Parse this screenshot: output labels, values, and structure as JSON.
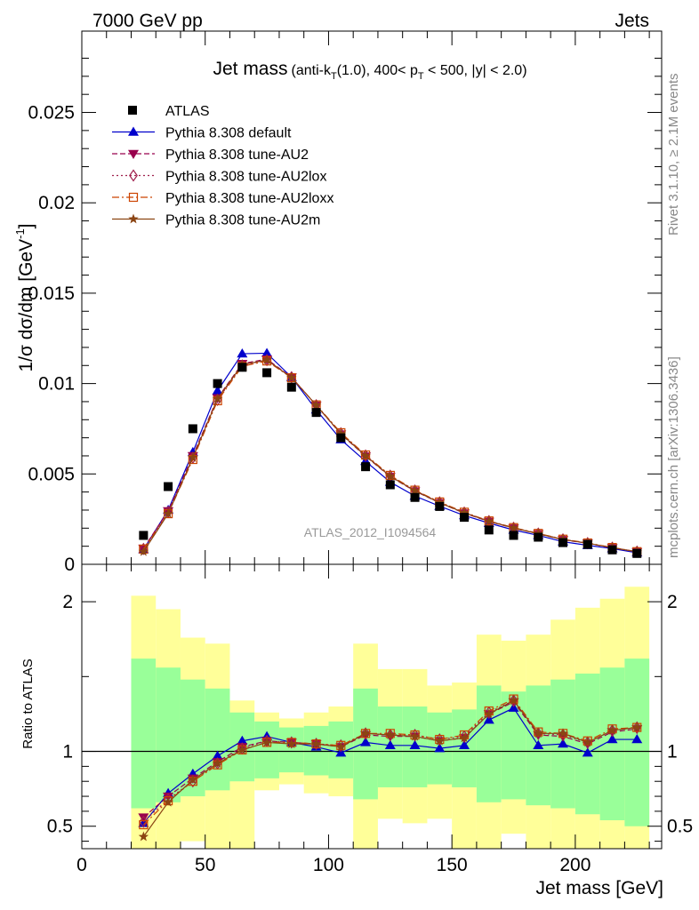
{
  "header": {
    "left": "7000 GeV pp",
    "right": "Jets"
  },
  "title": {
    "main": "Jet mass",
    "detail_1": "(anti-k",
    "detail_sub_1": "T",
    "detail_2": "(1.0), 400< p",
    "detail_sub_2": "T",
    "detail_3": " < 500, |y| < 2.0)"
  },
  "side_labels": {
    "rivet": "Rivet 3.1.10, ≥ 2.1M events",
    "mcplots": "mcplots.cern.ch [arXiv:1306.3436]"
  },
  "watermark": "ATLAS_2012_I1094564",
  "chart_data": [
    {
      "type": "scatter",
      "panel": "main",
      "ylabel_main": "1/σ dσ/dm [GeV",
      "ylabel_sup": "-1",
      "ylabel_close": "]",
      "xlim": [
        0,
        235
      ],
      "ylim": [
        0,
        0.0295
      ],
      "yticks": [
        0,
        0.005,
        0.01,
        0.015,
        0.02,
        0.025
      ],
      "ytick_labels": [
        "0",
        "0.005",
        "0.01",
        "0.015",
        "0.02",
        "0.025"
      ],
      "x": [
        25,
        35,
        45,
        55,
        65,
        75,
        85,
        95,
        105,
        115,
        125,
        135,
        145,
        155,
        165,
        175,
        185,
        195,
        205,
        215,
        225
      ],
      "data": {
        "name": "ATLAS",
        "values": [
          0.0016,
          0.0043,
          0.0075,
          0.01,
          0.0109,
          0.0106,
          0.0098,
          0.0084,
          0.007,
          0.0054,
          0.0044,
          0.0037,
          0.0032,
          0.0026,
          0.0019,
          0.0016,
          0.0015,
          0.0012,
          0.0011,
          0.0008,
          0.0006
        ]
      },
      "series": [
        {
          "name": "Pythia 8.308 default",
          "color": "#0000cc",
          "dash": "",
          "marker": "triangle-up",
          "values": [
            0.00082,
            0.003,
            0.0062,
            0.0096,
            0.01165,
            0.01168,
            0.01035,
            0.00855,
            0.0069,
            0.0057,
            0.00455,
            0.00378,
            0.00322,
            0.0027,
            0.00228,
            0.0019,
            0.0016,
            0.00125,
            0.00105,
            0.00087,
            0.00064
          ]
        },
        {
          "name": "Pythia 8.308 tune-AU2",
          "color": "#99004d",
          "dash": "6,3",
          "marker": "triangle-down",
          "values": [
            0.00088,
            0.00295,
            0.006,
            0.0092,
            0.0111,
            0.01135,
            0.01035,
            0.0088,
            0.0072,
            0.00598,
            0.00485,
            0.00405,
            0.0034,
            0.00283,
            0.00237,
            0.002,
            0.00168,
            0.00136,
            0.00116,
            0.00091,
            0.00069
          ]
        },
        {
          "name": "Pythia 8.308 tune-AU2lox",
          "color": "#a0204d",
          "dash": "2,3",
          "marker": "diamond",
          "values": [
            0.00085,
            0.0029,
            0.0059,
            0.0091,
            0.011,
            0.0113,
            0.01035,
            0.0088,
            0.00725,
            0.00602,
            0.0049,
            0.00408,
            0.00343,
            0.00286,
            0.00239,
            0.00202,
            0.0017,
            0.00138,
            0.00117,
            0.00092,
            0.0007
          ]
        },
        {
          "name": "Pythia 8.308 tune-AU2loxx",
          "color": "#cc4400",
          "dash": "8,3,2,3",
          "marker": "square",
          "values": [
            0.00084,
            0.0028,
            0.0058,
            0.00905,
            0.01095,
            0.01125,
            0.01032,
            0.00882,
            0.00728,
            0.00605,
            0.00492,
            0.0041,
            0.00345,
            0.00288,
            0.0024,
            0.00203,
            0.00171,
            0.00139,
            0.00118,
            0.00093,
            0.0007
          ]
        },
        {
          "name": "Pythia 8.308 tune-AU2m",
          "color": "#8b4513",
          "dash": "",
          "marker": "star",
          "values": [
            0.0007,
            0.0028,
            0.0059,
            0.00915,
            0.01105,
            0.0113,
            0.01033,
            0.0088,
            0.00722,
            0.006,
            0.00487,
            0.00407,
            0.00341,
            0.00285,
            0.00238,
            0.00201,
            0.00169,
            0.00137,
            0.00117,
            0.00092,
            0.00069
          ]
        }
      ],
      "legend_placement": "top-left"
    },
    {
      "type": "line",
      "panel": "ratio",
      "ylabel": "Ratio to ATLAS",
      "xlabel": "Jet mass [GeV]",
      "xlim": [
        0,
        235
      ],
      "ylim": [
        0.35,
        2.25
      ],
      "xticks": [
        0,
        50,
        100,
        150,
        200
      ],
      "xtick_labels": [
        "0",
        "50",
        "100",
        "150",
        "200"
      ],
      "yticks": [
        0.5,
        1,
        2
      ],
      "ytick_labels": [
        "0.5",
        "1",
        "2"
      ],
      "bin_edges": [
        20,
        30,
        40,
        50,
        60,
        70,
        80,
        90,
        100,
        110,
        120,
        130,
        140,
        150,
        160,
        170,
        180,
        190,
        200,
        210,
        220,
        230
      ],
      "band_1sigma_low": [
        0.62,
        0.66,
        0.7,
        0.74,
        0.8,
        0.82,
        0.86,
        0.84,
        0.82,
        0.68,
        0.76,
        0.76,
        0.78,
        0.76,
        0.66,
        0.68,
        0.64,
        0.62,
        0.58,
        0.54,
        0.5
      ],
      "band_1sigma_high": [
        1.62,
        1.56,
        1.48,
        1.42,
        1.26,
        1.2,
        1.16,
        1.17,
        1.2,
        1.42,
        1.3,
        1.3,
        1.26,
        1.28,
        1.44,
        1.4,
        1.44,
        1.48,
        1.52,
        1.56,
        1.62
      ],
      "band_2sigma_low": [
        0.35,
        0.35,
        0.4,
        0.35,
        0.35,
        0.74,
        0.78,
        0.72,
        0.7,
        0.35,
        0.55,
        0.52,
        0.55,
        0.35,
        0.35,
        0.45,
        0.35,
        0.35,
        0.35,
        0.35,
        0.35
      ],
      "band_2sigma_high": [
        2.04,
        1.95,
        1.76,
        1.72,
        1.34,
        1.26,
        1.22,
        1.26,
        1.3,
        1.72,
        1.55,
        1.55,
        1.44,
        1.46,
        1.78,
        1.74,
        1.78,
        1.88,
        1.96,
        2.02,
        2.1
      ],
      "series": [
        {
          "name": "Pythia 8.308 default",
          "values": [
            0.52,
            0.72,
            0.85,
            0.97,
            1.07,
            1.1,
            1.06,
            1.03,
            0.99,
            1.06,
            1.04,
            1.04,
            1.02,
            1.04,
            1.21,
            1.29,
            1.04,
            1.05,
            0.99,
            1.08,
            1.08
          ]
        },
        {
          "name": "Pythia 8.308 tune-AU2",
          "values": [
            0.56,
            0.7,
            0.82,
            0.93,
            1.03,
            1.07,
            1.06,
            1.05,
            1.03,
            1.11,
            1.1,
            1.1,
            1.07,
            1.09,
            1.25,
            1.33,
            1.11,
            1.1,
            1.05,
            1.13,
            1.15
          ]
        },
        {
          "name": "Pythia 8.308 tune-AU2lox",
          "values": [
            0.53,
            0.68,
            0.8,
            0.92,
            1.02,
            1.07,
            1.06,
            1.05,
            1.04,
            1.12,
            1.11,
            1.11,
            1.08,
            1.1,
            1.26,
            1.34,
            1.12,
            1.11,
            1.06,
            1.14,
            1.16
          ]
        },
        {
          "name": "Pythia 8.308 tune-AU2loxx",
          "values": [
            0.51,
            0.67,
            0.8,
            0.91,
            1.01,
            1.06,
            1.06,
            1.05,
            1.04,
            1.12,
            1.12,
            1.11,
            1.08,
            1.11,
            1.27,
            1.35,
            1.13,
            1.12,
            1.07,
            1.15,
            1.16
          ]
        },
        {
          "name": "Pythia 8.308 tune-AU2m",
          "values": [
            0.43,
            0.66,
            0.81,
            0.92,
            1.01,
            1.06,
            1.05,
            1.05,
            1.03,
            1.12,
            1.11,
            1.1,
            1.07,
            1.09,
            1.25,
            1.34,
            1.12,
            1.12,
            1.06,
            1.14,
            1.16
          ]
        }
      ]
    }
  ]
}
